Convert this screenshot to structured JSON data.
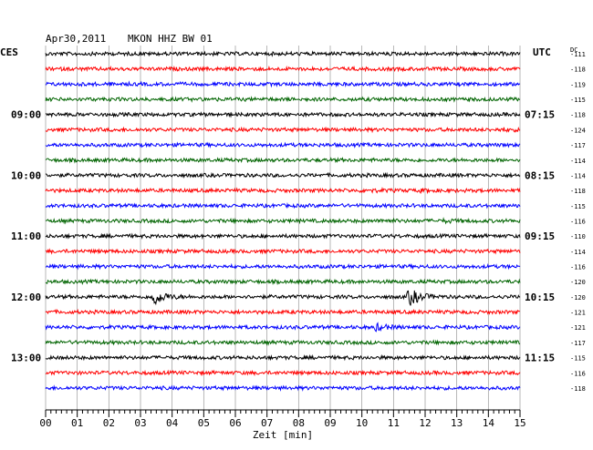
{
  "header": {
    "date": "Apr30,2011",
    "station": "MKON HHZ BW 01",
    "left_zone": "CES",
    "right_zone": "UTC",
    "dc_label": "DC"
  },
  "chart_data": {
    "type": "line",
    "title": "Apr30,2011  MKON HHZ BW 01",
    "xlabel": "Zeit [min]",
    "ylabel": "",
    "x_ticks": [
      "00",
      "01",
      "02",
      "03",
      "04",
      "05",
      "06",
      "07",
      "08",
      "09",
      "10",
      "11",
      "12",
      "13",
      "14",
      "15"
    ],
    "xlim": [
      0,
      15
    ],
    "grid": true,
    "trace_colors": [
      "#000000",
      "#ff0000",
      "#0000ff",
      "#006400"
    ],
    "left_time_labels": [
      {
        "trace": 4,
        "text": "09:00"
      },
      {
        "trace": 8,
        "text": "10:00"
      },
      {
        "trace": 12,
        "text": "11:00"
      },
      {
        "trace": 16,
        "text": "12:00"
      },
      {
        "trace": 20,
        "text": "13:00"
      }
    ],
    "right_time_labels": [
      {
        "trace": 4,
        "text": "07:15"
      },
      {
        "trace": 8,
        "text": "08:15"
      },
      {
        "trace": 12,
        "text": "09:15"
      },
      {
        "trace": 16,
        "text": "10:15"
      },
      {
        "trace": 20,
        "text": "11:15"
      }
    ],
    "dc_offsets": [
      "-111",
      "-118",
      "-119",
      "-115",
      "-118",
      "-124",
      "-117",
      "-114",
      "-114",
      "-118",
      "-115",
      "-116",
      "-110",
      "-114",
      "-116",
      "-120",
      "-120",
      "-121",
      "-121",
      "-117",
      "-115",
      "-116",
      "-118"
    ],
    "events": [
      {
        "trace": 16,
        "minute": 3.4,
        "amplitude": 1.0
      },
      {
        "trace": 16,
        "minute": 11.5,
        "amplitude": 1.0
      },
      {
        "trace": 18,
        "minute": 10.45,
        "amplitude": 0.35
      },
      {
        "trace": 5,
        "minute": 14.4,
        "amplitude": 0.12
      },
      {
        "trace": 9,
        "minute": 10.1,
        "amplitude": 0.12
      },
      {
        "trace": 9,
        "minute": 11.8,
        "amplitude": 0.1
      },
      {
        "trace": 11,
        "minute": 10.6,
        "amplitude": 0.12
      },
      {
        "trace": 11,
        "minute": 12.6,
        "amplitude": 0.12
      }
    ]
  }
}
